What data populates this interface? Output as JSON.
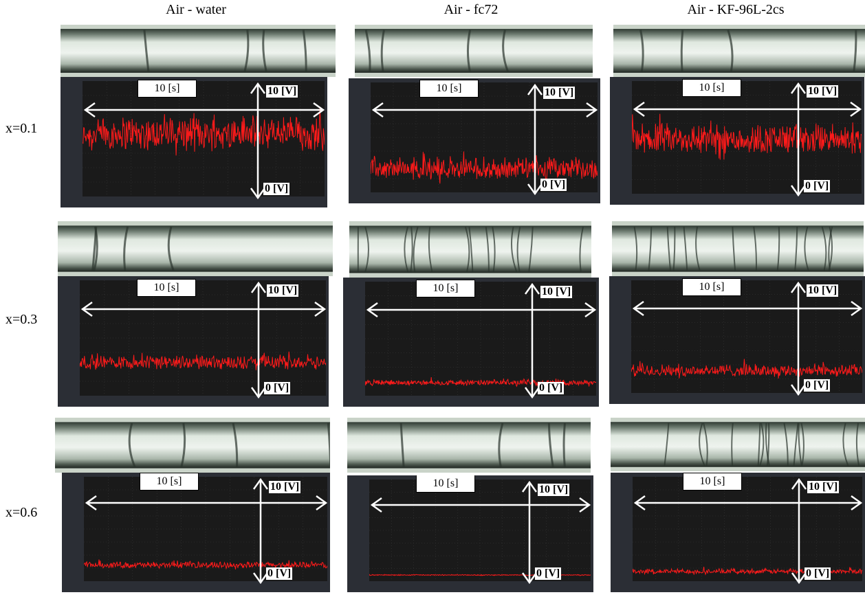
{
  "columns": [
    "Air - water",
    "Air - fc72",
    "Air - KF-96L-2cs"
  ],
  "rows": [
    "x=0.1",
    "x=0.3",
    "x=0.6"
  ],
  "labels": {
    "time": "10 [s]",
    "vmax": "10 [V]",
    "vmin": "0 [V]"
  },
  "colors": {
    "signal": "#ff1a1a",
    "scope_bg": "#1a1a1a",
    "scope_frame": "#2b2e35",
    "grid": "#3a3a3a"
  },
  "chart_data": [
    {
      "type": "line",
      "fluid": "Air - water",
      "quality": "x=0.1",
      "ylim": [
        0,
        10
      ],
      "signal_mean": 5.2,
      "signal_amplitude": 2.5
    },
    {
      "type": "line",
      "fluid": "Air - fc72",
      "quality": "x=0.1",
      "ylim": [
        0,
        10
      ],
      "signal_mean": 2.0,
      "signal_amplitude": 1.6
    },
    {
      "type": "line",
      "fluid": "Air - KF-96L-2cs",
      "quality": "x=0.1",
      "ylim": [
        0,
        10
      ],
      "signal_mean": 4.6,
      "signal_amplitude": 2.2
    },
    {
      "type": "line",
      "fluid": "Air - water",
      "quality": "x=0.3",
      "ylim": [
        0,
        10
      ],
      "signal_mean": 2.8,
      "signal_amplitude": 1.0
    },
    {
      "type": "line",
      "fluid": "Air - fc72",
      "quality": "x=0.3",
      "ylim": [
        0,
        10
      ],
      "signal_mean": 1.1,
      "signal_amplitude": 0.4
    },
    {
      "type": "line",
      "fluid": "Air - KF-96L-2cs",
      "quality": "x=0.3",
      "ylim": [
        0,
        10
      ],
      "signal_mean": 1.9,
      "signal_amplitude": 0.9
    },
    {
      "type": "line",
      "fluid": "Air - water",
      "quality": "x=0.6",
      "ylim": [
        0,
        10
      ],
      "signal_mean": 1.5,
      "signal_amplitude": 0.5
    },
    {
      "type": "line",
      "fluid": "Air - fc72",
      "quality": "x=0.6",
      "ylim": [
        0,
        10
      ],
      "signal_mean": 0.6,
      "signal_amplitude": 0.08
    },
    {
      "type": "line",
      "fluid": "Air - KF-96L-2cs",
      "quality": "x=0.6",
      "ylim": [
        0,
        10
      ],
      "signal_mean": 0.9,
      "signal_amplitude": 0.4
    }
  ]
}
